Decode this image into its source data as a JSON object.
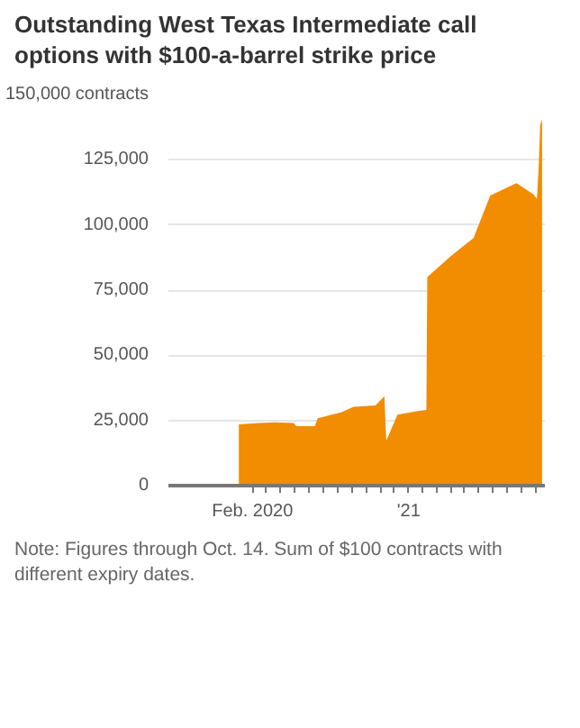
{
  "chart_data": {
    "type": "area",
    "title": "Outstanding West Texas Intermediate call options with $100-a-barrel strike price",
    "annotations": [
      "Note: Figures through Oct. 14. Sum of $100 contracts with different expiry dates."
    ],
    "x": [
      "2020-01-03",
      "2020-02-15",
      "2020-03-20",
      "2020-04-30",
      "2020-05-05",
      "2020-06-14",
      "2020-06-20",
      "2020-08-10",
      "2020-09-05",
      "2020-10-22",
      "2020-11-10",
      "2020-11-14",
      "2020-12-08",
      "2021-01-20",
      "2021-02-08",
      "2021-02-10",
      "2021-04-01",
      "2021-05-20",
      "2021-06-25",
      "2021-08-20",
      "2021-09-25",
      "2021-10-03",
      "2021-10-07",
      "2021-10-10",
      "2021-10-14"
    ],
    "series": [
      {
        "color": "#f28c00",
        "values": [
          23500,
          24000,
          24300,
          24000,
          22800,
          22800,
          25800,
          28200,
          30200,
          30800,
          34300,
          17200,
          27200,
          28600,
          29000,
          80000,
          88000,
          95000,
          111300,
          116000,
          111800,
          110000,
          123400,
          138400,
          140400
        ]
      }
    ],
    "xlim": [
      "2019-08-05",
      "2021-10-20"
    ],
    "xticks": [
      {
        "value": "2020-02-01",
        "label": "Feb. 2020"
      },
      {
        "value": "2020-03-01",
        "label": null
      },
      {
        "value": "2020-04-01",
        "label": null
      },
      {
        "value": "2020-05-01",
        "label": null
      },
      {
        "value": "2020-06-01",
        "label": null
      },
      {
        "value": "2020-07-01",
        "label": null
      },
      {
        "value": "2020-08-01",
        "label": null
      },
      {
        "value": "2020-09-01",
        "label": null
      },
      {
        "value": "2020-10-01",
        "label": null
      },
      {
        "value": "2020-11-01",
        "label": null
      },
      {
        "value": "2020-12-01",
        "label": null
      },
      {
        "value": "2021-01-01",
        "label": "'21"
      },
      {
        "value": "2021-02-01",
        "label": null
      },
      {
        "value": "2021-03-01",
        "label": null
      },
      {
        "value": "2021-04-01",
        "label": null
      },
      {
        "value": "2021-05-01",
        "label": null
      },
      {
        "value": "2021-06-01",
        "label": null
      },
      {
        "value": "2021-07-01",
        "label": null
      },
      {
        "value": "2021-08-01",
        "label": null
      },
      {
        "value": "2021-09-01",
        "label": null
      },
      {
        "value": "2021-10-01",
        "label": null
      }
    ],
    "ylim": [
      0,
      150000
    ],
    "yticks": [
      0,
      {
        "value": 25000,
        "label": "25,000"
      },
      {
        "value": 50000,
        "label": "50,000"
      },
      {
        "value": 75000,
        "label": "75,000"
      },
      {
        "value": 100000,
        "label": "100,000"
      },
      {
        "value": 125000,
        "label": "125,000"
      },
      {
        "value": 150000,
        "label": "150,000 contracts"
      }
    ],
    "grid": "y"
  }
}
